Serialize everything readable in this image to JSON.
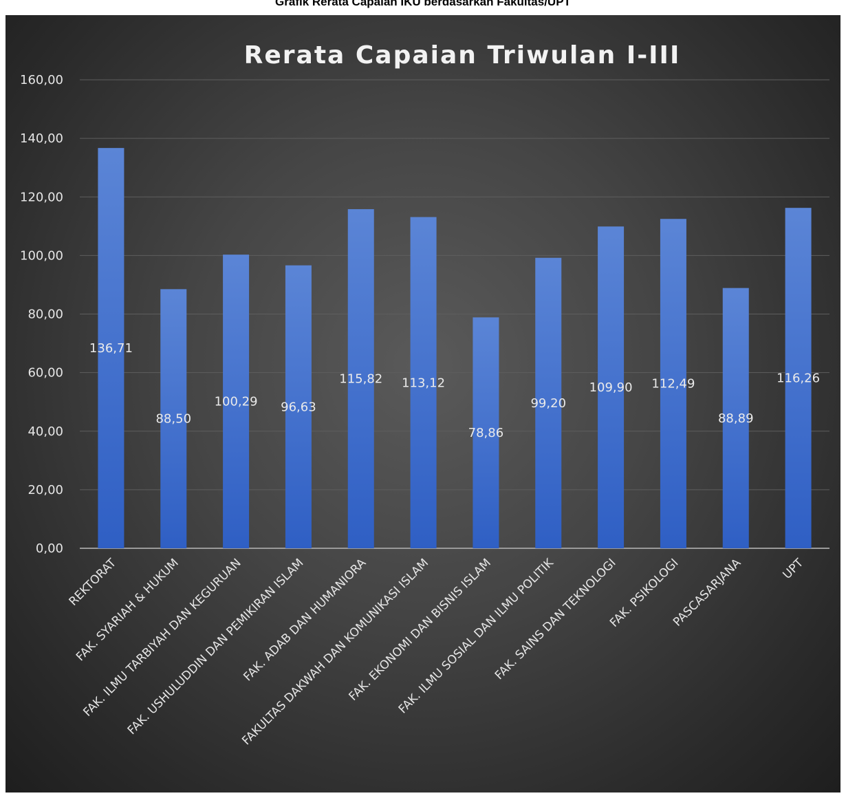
{
  "document": {
    "caption": "Grafik Rerata Capaian IKU berdasarkan Fakultas/UPT"
  },
  "colors": {
    "background_center": "#5a5a5a",
    "background_edge": "#1e1e1e",
    "bar_top": "#5b85d6",
    "bar_bottom": "#2f5fc4",
    "text": "#e6e6e6"
  },
  "chart_data": {
    "type": "bar",
    "title": "Rerata Capaian Triwulan I-III",
    "xlabel": "",
    "ylabel": "",
    "ylim": [
      0,
      160
    ],
    "yticks": [
      "0,00",
      "20,00",
      "40,00",
      "60,00",
      "80,00",
      "100,00",
      "120,00",
      "140,00",
      "160,00"
    ],
    "grid": true,
    "legend": "none",
    "categories": [
      "REKTORAT",
      "FAK. SYARIAH & HUKUM",
      "FAK. ILMU TARBIYAH DAN KEGURUAN",
      "FAK. USHULUDDIN DAN PEMIKIRAN ISLAM",
      "FAK. ADAB DAN HUMANIORA",
      "FAKULTAS DAKWAH DAN KOMUNIKASI ISLAM",
      "FAK. EKONOMI DAN BISNIS ISLAM",
      "FAK. ILMU SOSIAL DAN ILMU POLITIK",
      "FAK. SAINS DAN TEKNOLOGI",
      "FAK. PSIKOLOGI",
      "PASCASARJANA",
      "UPT"
    ],
    "values": [
      136.71,
      88.5,
      100.29,
      96.63,
      115.82,
      113.12,
      78.86,
      99.2,
      109.9,
      112.49,
      88.89,
      116.26
    ],
    "data_labels": [
      "136,71",
      "88,50",
      "100,29",
      "96,63",
      "115,82",
      "113,12",
      "78,86",
      "99,20",
      "109,90",
      "112,49",
      "88,89",
      "116,26"
    ]
  }
}
